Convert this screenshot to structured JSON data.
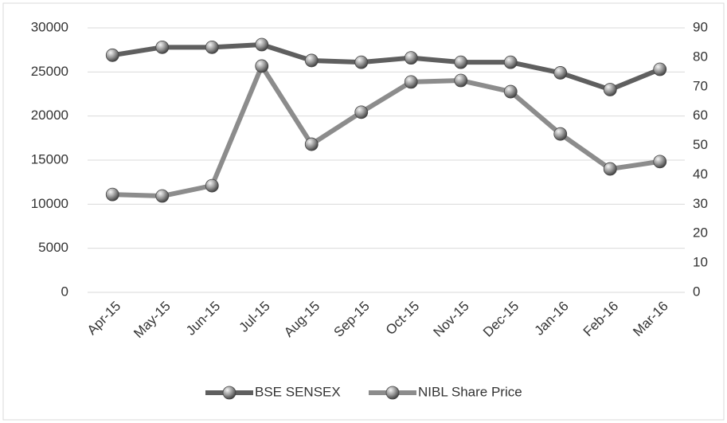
{
  "chart_data": {
    "type": "line",
    "categories": [
      "Apr-15",
      "May-15",
      "Jun-15",
      "Jul-15",
      "Aug-15",
      "Sep-15",
      "Oct-15",
      "Nov-15",
      "Dec-15",
      "Jan-16",
      "Feb-16",
      "Mar-16"
    ],
    "series": [
      {
        "name": "BSE SENSEX",
        "color": "#5f5f5f",
        "values": [
          26900,
          27800,
          27800,
          28100,
          26300,
          26100,
          26600,
          26100,
          26100,
          24900,
          23000,
          25300
        ]
      },
      {
        "name": "NIBL Share Price",
        "color": "#8c8c8c",
        "axis": "y2",
        "values": [
          33.3,
          32.8,
          36.3,
          77,
          50.4,
          61.3,
          71.6,
          72.1,
          68.3,
          53.9,
          42,
          44.5
        ]
      }
    ],
    "ylim": [
      0,
      30000
    ],
    "yticks": [
      0,
      5000,
      10000,
      15000,
      20000,
      25000,
      30000
    ],
    "y2lim": [
      0,
      90
    ],
    "y2ticks": [
      0,
      10,
      20,
      30,
      40,
      50,
      60,
      70,
      80,
      90
    ],
    "grid": true,
    "legend": "bottom"
  }
}
